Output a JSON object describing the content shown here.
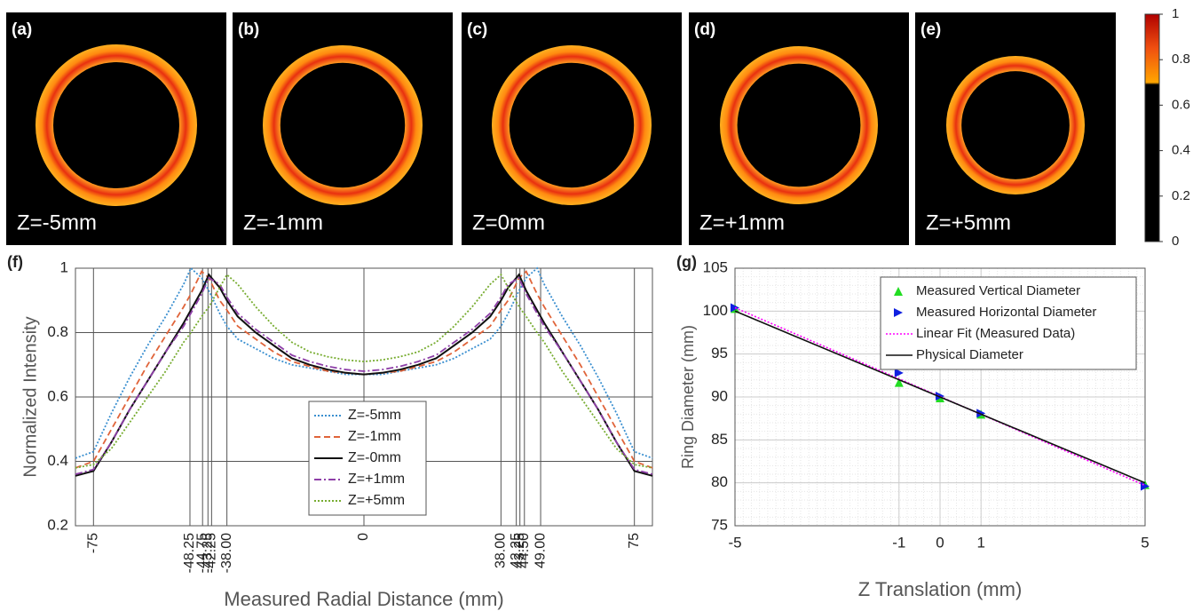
{
  "images": [
    {
      "label": "(a)",
      "caption": "Z=-5mm"
    },
    {
      "label": "(b)",
      "caption": "Z=-1mm"
    },
    {
      "label": "(c)",
      "caption": "Z=0mm"
    },
    {
      "label": "(d)",
      "caption": "Z=+1mm"
    },
    {
      "label": "(e)",
      "caption": "Z=+5mm"
    }
  ],
  "chart_data": [
    {
      "type": "colorbar",
      "ylim": [
        0,
        1
      ],
      "yticks": [
        0,
        0.2,
        0.4,
        0.6,
        0.8,
        1
      ]
    },
    {
      "type": "line",
      "label": "(f)",
      "xlabel": "Measured Radial Distance (mm)",
      "ylabel": "Normalized Intensity",
      "xlim": [
        -80,
        80
      ],
      "ylim": [
        0.2,
        1
      ],
      "grid": true,
      "legend": "lower center",
      "yticks": [
        0.2,
        0.4,
        0.6,
        0.8,
        1
      ],
      "xticks": [
        -75,
        -48.25,
        -44.75,
        -43.25,
        -42.25,
        {
          "value": -38,
          "label": "-38.00"
        },
        0,
        {
          "value": 38,
          "label": "38.00"
        },
        42.25,
        43.25,
        {
          "value": 44.5,
          "label": "44.50"
        },
        {
          "value": 49,
          "label": "49.00"
        },
        75
      ],
      "x": [
        -80,
        -75,
        -70,
        -65,
        -60,
        -55,
        -50,
        -48,
        -45,
        -43,
        -40,
        -38,
        -35,
        -30,
        -25,
        -20,
        -15,
        -10,
        -5,
        0,
        5,
        10,
        15,
        20,
        25,
        30,
        35,
        38,
        40,
        43,
        45,
        48,
        50,
        55,
        60,
        65,
        70,
        75,
        80
      ],
      "series": [
        {
          "name": "Z=-5mm",
          "color": "#3a8fd0",
          "style": "dotted",
          "values": [
            0.41,
            0.43,
            0.55,
            0.66,
            0.76,
            0.85,
            0.95,
            1.0,
            0.97,
            0.93,
            0.86,
            0.82,
            0.78,
            0.75,
            0.72,
            0.7,
            0.69,
            0.68,
            0.67,
            0.67,
            0.67,
            0.68,
            0.69,
            0.7,
            0.72,
            0.75,
            0.78,
            0.82,
            0.86,
            0.93,
            0.97,
            1.0,
            0.95,
            0.85,
            0.76,
            0.66,
            0.55,
            0.43,
            0.41
          ]
        },
        {
          "name": "Z=-1mm",
          "color": "#e0643a",
          "style": "dashed",
          "values": [
            0.38,
            0.4,
            0.5,
            0.6,
            0.7,
            0.79,
            0.88,
            0.92,
            0.99,
            0.97,
            0.9,
            0.87,
            0.82,
            0.78,
            0.74,
            0.71,
            0.695,
            0.68,
            0.675,
            0.67,
            0.675,
            0.68,
            0.695,
            0.71,
            0.74,
            0.78,
            0.82,
            0.87,
            0.9,
            0.97,
            0.99,
            0.92,
            0.88,
            0.79,
            0.7,
            0.6,
            0.5,
            0.4,
            0.38
          ]
        },
        {
          "name": "Z=-0mm",
          "color": "#111111",
          "style": "solid",
          "values": [
            0.355,
            0.37,
            0.46,
            0.56,
            0.65,
            0.74,
            0.83,
            0.87,
            0.93,
            0.98,
            0.94,
            0.9,
            0.85,
            0.8,
            0.76,
            0.72,
            0.7,
            0.685,
            0.675,
            0.67,
            0.675,
            0.685,
            0.7,
            0.72,
            0.76,
            0.8,
            0.85,
            0.9,
            0.94,
            0.98,
            0.93,
            0.87,
            0.83,
            0.74,
            0.65,
            0.56,
            0.46,
            0.37,
            0.355
          ]
        },
        {
          "name": "Z=+1mm",
          "color": "#8e3fa8",
          "style": "dashdot",
          "values": [
            0.36,
            0.375,
            0.46,
            0.56,
            0.65,
            0.74,
            0.82,
            0.86,
            0.92,
            0.97,
            0.95,
            0.91,
            0.86,
            0.81,
            0.77,
            0.73,
            0.71,
            0.695,
            0.685,
            0.68,
            0.685,
            0.695,
            0.71,
            0.73,
            0.77,
            0.81,
            0.86,
            0.91,
            0.95,
            0.97,
            0.92,
            0.86,
            0.82,
            0.74,
            0.65,
            0.56,
            0.46,
            0.375,
            0.36
          ]
        },
        {
          "name": "Z=+5mm",
          "color": "#77ac30",
          "style": "dotted",
          "values": [
            0.38,
            0.39,
            0.44,
            0.52,
            0.6,
            0.68,
            0.77,
            0.8,
            0.85,
            0.88,
            0.94,
            0.98,
            0.95,
            0.88,
            0.82,
            0.77,
            0.74,
            0.725,
            0.715,
            0.71,
            0.715,
            0.725,
            0.74,
            0.77,
            0.82,
            0.88,
            0.95,
            0.98,
            0.94,
            0.88,
            0.85,
            0.8,
            0.77,
            0.68,
            0.6,
            0.52,
            0.44,
            0.39,
            0.38
          ]
        }
      ]
    },
    {
      "type": "scatter",
      "label": "(g)",
      "xlabel": "Z Translation (mm)",
      "ylabel": "Ring Diameter (mm)",
      "xlim": [
        -5,
        5
      ],
      "ylim": [
        75,
        105
      ],
      "grid": true,
      "minor_grid": true,
      "legend": "upper right",
      "xticks": [
        -5,
        -1,
        0,
        1,
        5
      ],
      "yticks": [
        75,
        80,
        85,
        90,
        95,
        100,
        105
      ],
      "series": [
        {
          "name": "Measured Vertical Diameter",
          "color": "#22dd22",
          "marker": "triangle-up",
          "x": [
            -5,
            -1,
            0,
            1,
            5
          ],
          "values": [
            100.3,
            91.7,
            89.9,
            88.0,
            79.8
          ]
        },
        {
          "name": "Measured Horizontal Diameter",
          "color": "#1020e0",
          "marker": "triangle-right",
          "x": [
            -5,
            -1,
            0,
            1,
            5
          ],
          "values": [
            100.4,
            92.8,
            90.1,
            88.1,
            79.6
          ]
        },
        {
          "name": "Linear Fit (Measured Data)",
          "color": "#ff00ff",
          "style": "dotted",
          "x": [
            -5,
            5
          ],
          "values": [
            100.4,
            79.7
          ]
        },
        {
          "name": "Physical Diameter",
          "color": "#111111",
          "style": "solid",
          "x": [
            -5,
            5
          ],
          "values": [
            100,
            80
          ]
        }
      ]
    }
  ]
}
